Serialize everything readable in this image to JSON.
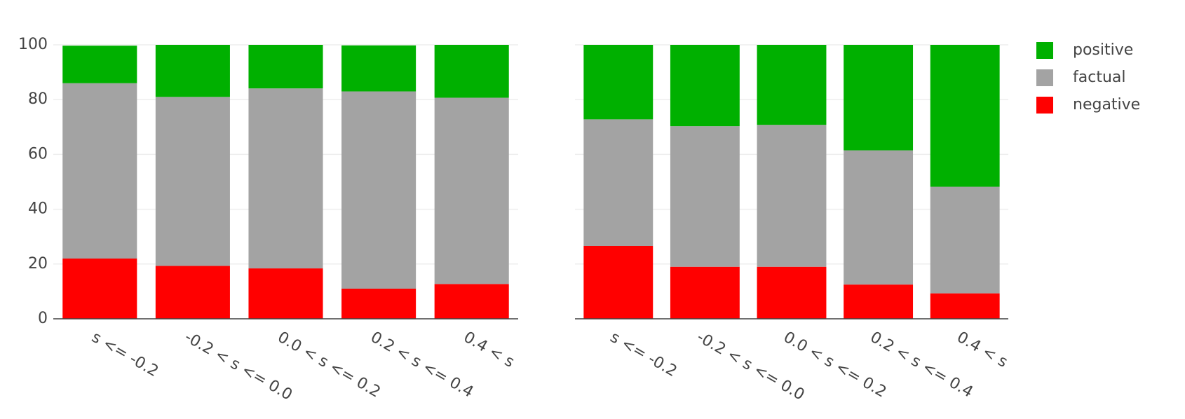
{
  "chart_data": [
    {
      "type": "stacked-bar",
      "categories": [
        "s <= -0.2",
        "-0.2 < s <= 0.0",
        "0.0 < s <= 0.2",
        "0.2 < s <= 0.4",
        "0.4 < s"
      ],
      "series": [
        {
          "name": "negative",
          "color": "#ff0000",
          "values": [
            22,
            19.3,
            18.4,
            11,
            12.7
          ]
        },
        {
          "name": "factual",
          "color": "#a3a3a3",
          "values": [
            64,
            61.7,
            65.7,
            72,
            68
          ]
        },
        {
          "name": "positive",
          "color": "#00b000",
          "values": [
            13.7,
            19,
            15.9,
            16.8,
            19.3
          ]
        }
      ],
      "ylim": [
        0,
        100
      ],
      "yticks": [
        0,
        20,
        40,
        60,
        80,
        100
      ],
      "grid": true
    },
    {
      "type": "stacked-bar",
      "categories": [
        "s <= -0.2",
        "-0.2 < s <= 0.0",
        "0.0 < s <= 0.2",
        "0.2 < s <= 0.4",
        "0.4 < s"
      ],
      "series": [
        {
          "color": "#ff0000",
          "values": [
            26.6,
            19,
            19,
            12.5,
            9.3
          ]
        },
        {
          "color": "#a3a3a3",
          "values": [
            46.2,
            51.3,
            51.8,
            49,
            38.9
          ]
        },
        {
          "color": "#00b000",
          "values": [
            27.2,
            29.7,
            29.2,
            38.5,
            51.8
          ]
        }
      ],
      "ylim": [
        0,
        100
      ],
      "yticks": [
        0,
        20,
        40,
        60,
        80,
        100
      ],
      "grid": true
    }
  ]
}
